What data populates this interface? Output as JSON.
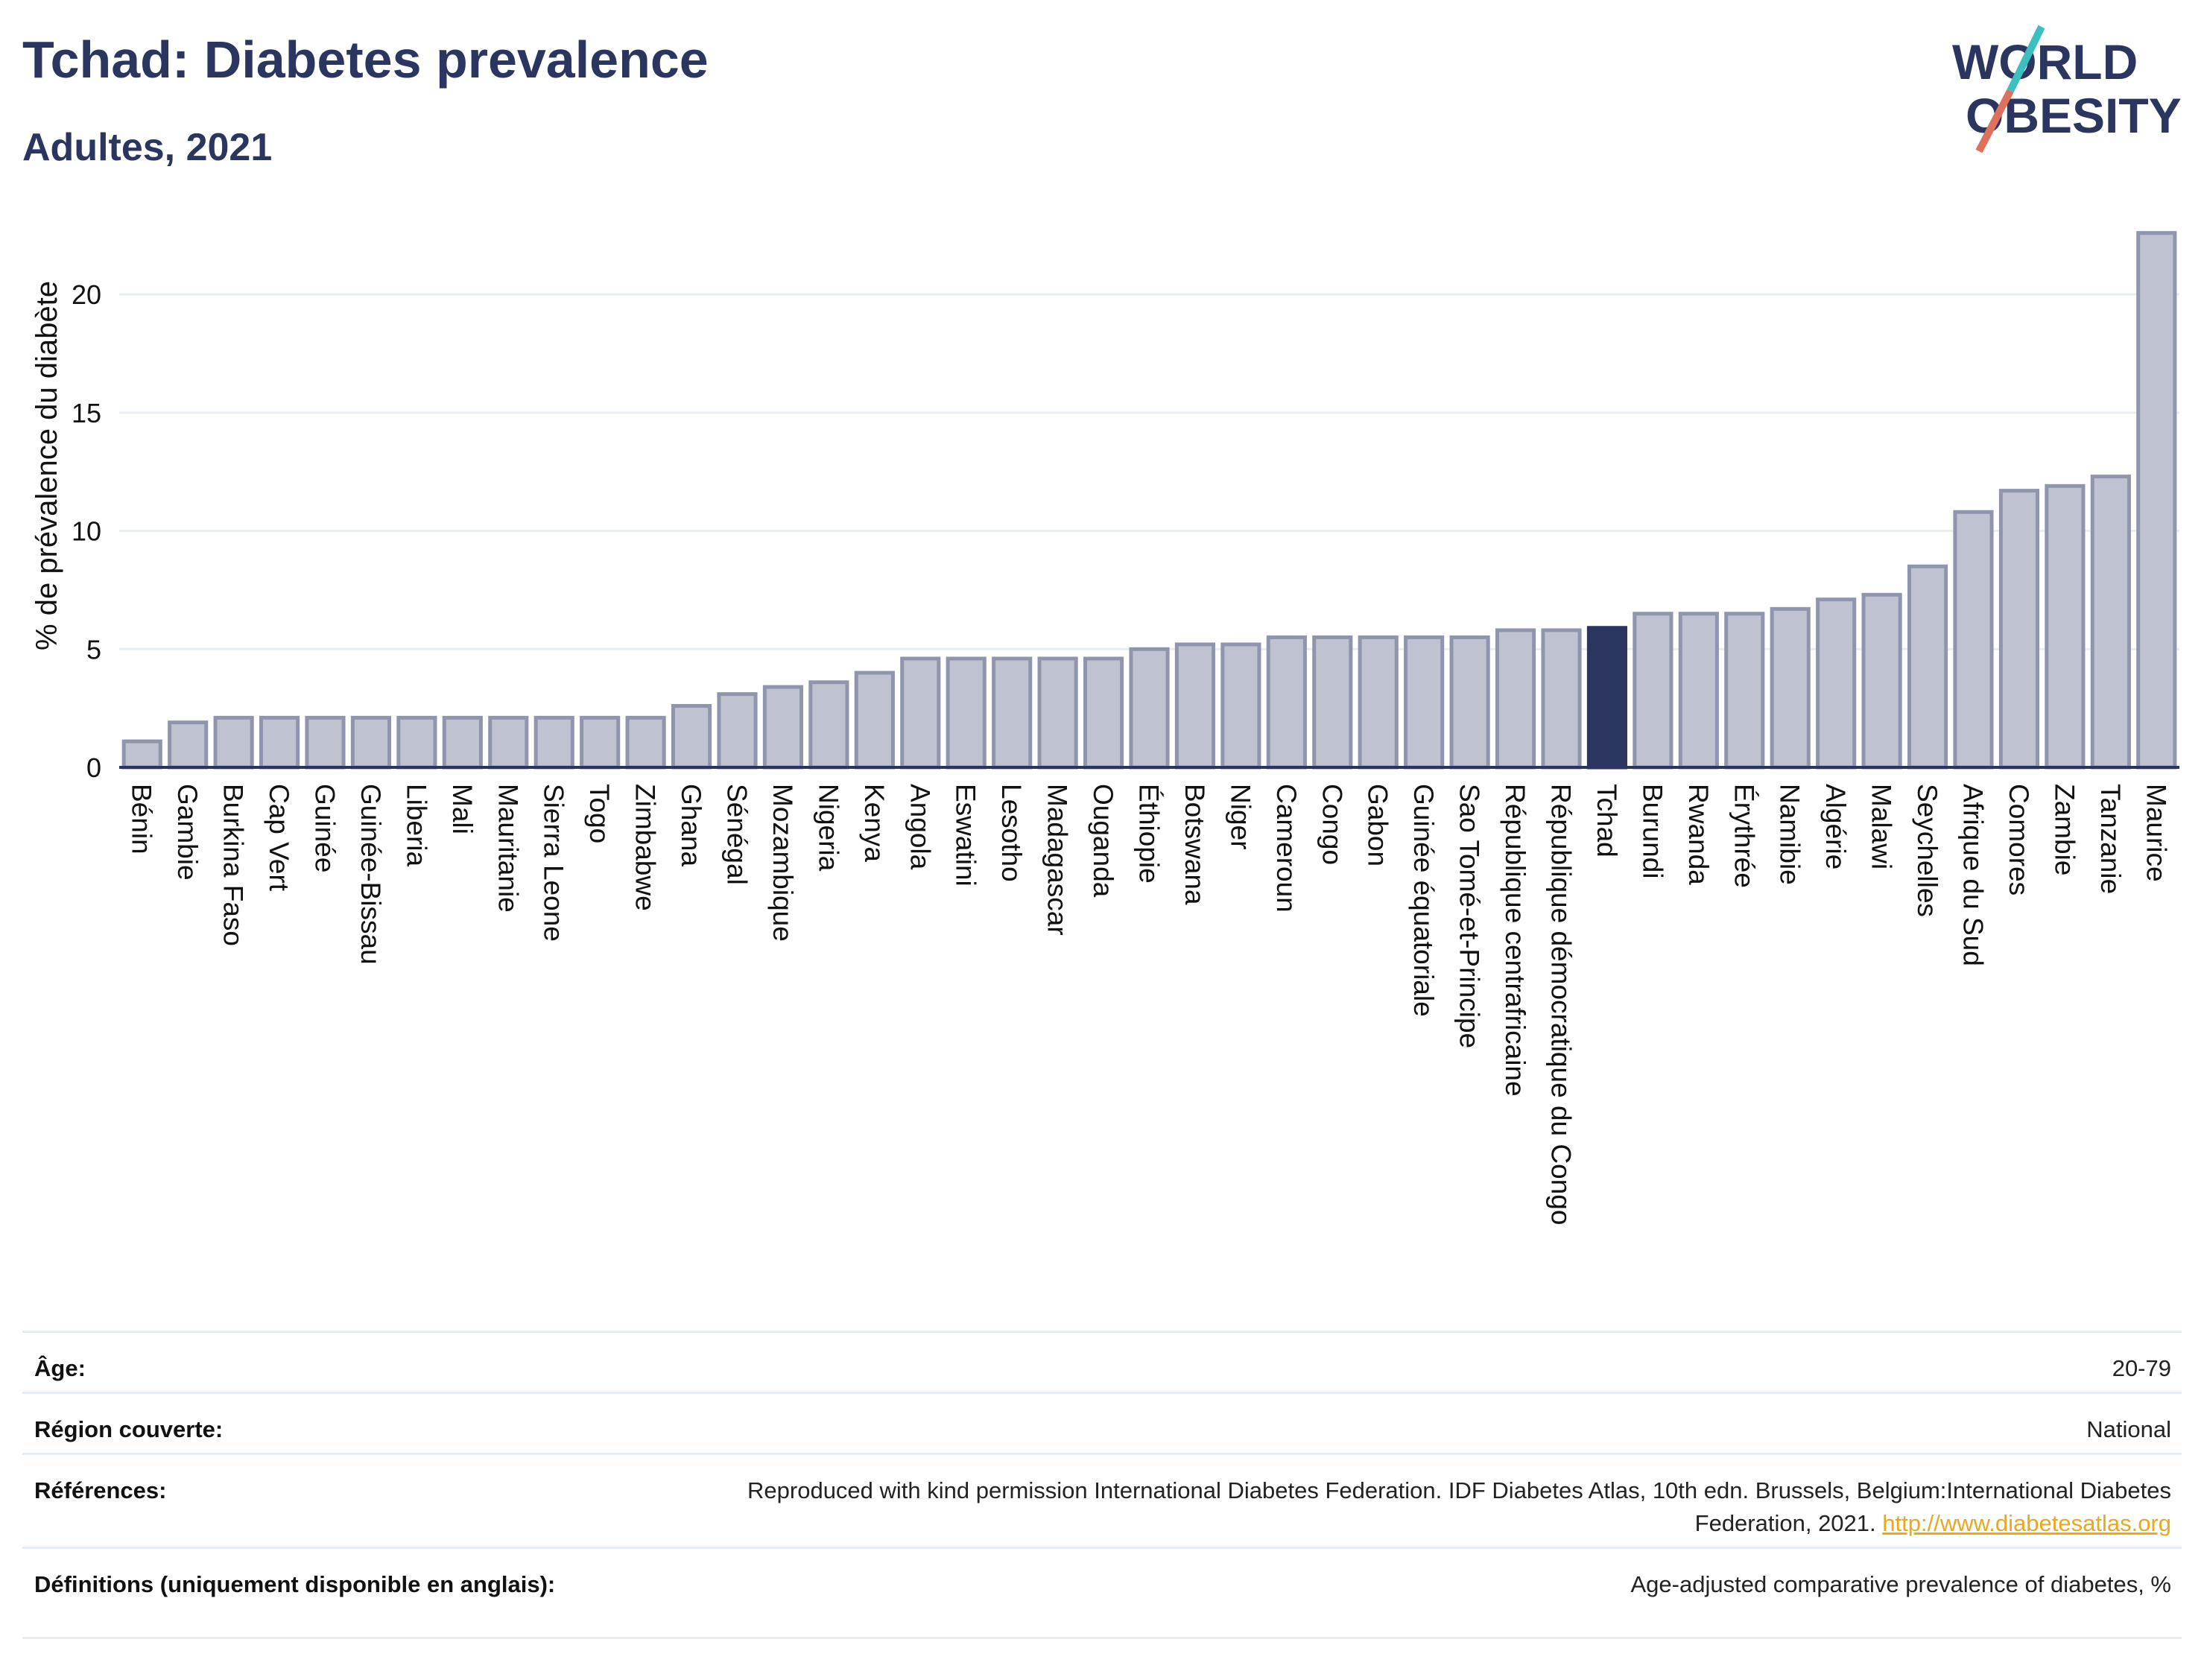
{
  "header": {
    "title": "Tchad: Diabetes prevalence",
    "subtitle": "Adultes, 2021",
    "logo_line1": "WORLD",
    "logo_line2": "OBESITY"
  },
  "colors": {
    "bar": "#bfc3d1",
    "bar_border": "#8f95ad",
    "highlight": "#2b3660",
    "grid": "#e6edf3",
    "text": "#2b3660",
    "logo_teal": "#3cbfc0",
    "logo_red": "#e0705e"
  },
  "chart_data": {
    "type": "bar",
    "ylabel": "% de prévalence du diabète",
    "xlabel": "",
    "ylim": [
      0,
      23
    ],
    "yticks": [
      0,
      5,
      10,
      15,
      20
    ],
    "grid": true,
    "highlight": "Tchad",
    "categories": [
      "Bénin",
      "Gambie",
      "Burkina Faso",
      "Cap Vert",
      "Guinée",
      "Guinée-Bissau",
      "Liberia",
      "Mali",
      "Mauritanie",
      "Sierra Leone",
      "Togo",
      "Zimbabwe",
      "Ghana",
      "Sénégal",
      "Mozambique",
      "Nigeria",
      "Kenya",
      "Angola",
      "Eswatini",
      "Lesotho",
      "Madagascar",
      "Ouganda",
      "Éthiopie",
      "Botswana",
      "Niger",
      "Cameroun",
      "Congo",
      "Gabon",
      "Guinée équatoriale",
      "Sao Tomé-et-Principe",
      "République centrafricaine",
      "République démocratique du Congo",
      "Tchad",
      "Burundi",
      "Rwanda",
      "Érythrée",
      "Namibie",
      "Algérie",
      "Malawi",
      "Seychelles",
      "Afrique du Sud",
      "Comores",
      "Zambie",
      "Tanzanie",
      "Maurice"
    ],
    "values": [
      1.1,
      1.9,
      2.1,
      2.1,
      2.1,
      2.1,
      2.1,
      2.1,
      2.1,
      2.1,
      2.1,
      2.1,
      2.6,
      3.1,
      3.4,
      3.6,
      4.0,
      4.6,
      4.6,
      4.6,
      4.6,
      4.6,
      5.0,
      5.2,
      5.2,
      5.5,
      5.5,
      5.5,
      5.5,
      5.5,
      5.8,
      5.8,
      5.9,
      6.5,
      6.5,
      6.5,
      6.7,
      7.1,
      7.3,
      8.5,
      10.8,
      11.7,
      11.9,
      12.3,
      22.6
    ]
  },
  "meta": {
    "age_label": "Âge:",
    "age_value": "20-79",
    "region_label": "Région couverte:",
    "region_value": "National",
    "refs_label": "Références:",
    "refs_value": "Reproduced with kind permission International Diabetes Federation.  IDF Diabetes Atlas, 10th edn. Brussels, Belgium:International Diabetes Federation, 2021.",
    "refs_link": "http://www.diabetesatlas.org",
    "defs_label": "Définitions (uniquement disponible en anglais):",
    "defs_value": "Age-adjusted comparative prevalence of diabetes, %"
  }
}
